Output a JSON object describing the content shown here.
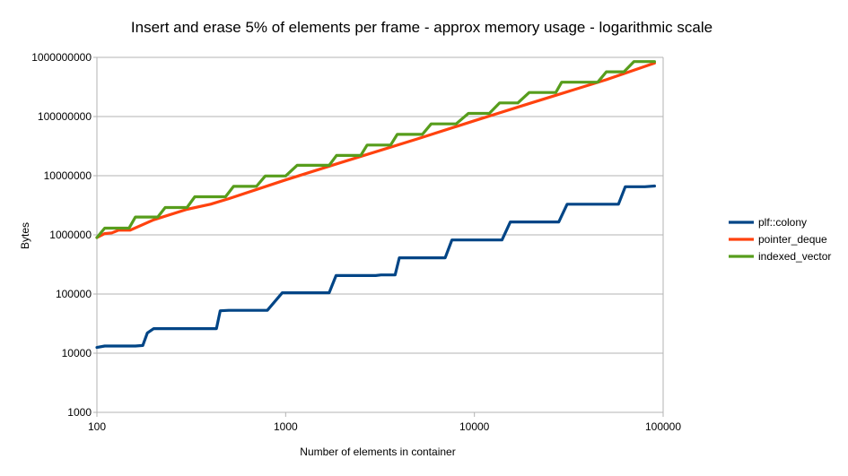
{
  "chart_data": {
    "type": "line",
    "title": "Insert and erase 5% of elements per frame - approx memory usage - logarithmic scale",
    "xlabel": "Number of elements in container",
    "ylabel": "Bytes",
    "x_scale": "log",
    "y_scale": "log",
    "xlim": [
      100,
      100000
    ],
    "ylim": [
      1000,
      1000000000
    ],
    "x_ticks": [
      "100",
      "1000",
      "10000",
      "100000"
    ],
    "y_ticks": [
      "1000",
      "10000",
      "100000",
      "1000000",
      "10000000",
      "100000000",
      "1000000000"
    ],
    "grid": "horizontal",
    "legend_position": "right",
    "series": [
      {
        "name": "plf::colony",
        "color": "#004586",
        "points": [
          [
            100,
            12500
          ],
          [
            110,
            13200
          ],
          [
            160,
            13200
          ],
          [
            175,
            13500
          ],
          [
            185,
            22000
          ],
          [
            200,
            26000
          ],
          [
            430,
            26000
          ],
          [
            450,
            52000
          ],
          [
            500,
            53000
          ],
          [
            800,
            53000
          ],
          [
            960,
            105000
          ],
          [
            1700,
            105000
          ],
          [
            1850,
            205000
          ],
          [
            3000,
            205000
          ],
          [
            3200,
            210000
          ],
          [
            3800,
            210000
          ],
          [
            4000,
            410000
          ],
          [
            7000,
            410000
          ],
          [
            7600,
            820000
          ],
          [
            14000,
            820000
          ],
          [
            15500,
            1650000
          ],
          [
            28000,
            1650000
          ],
          [
            31000,
            3300000
          ],
          [
            58000,
            3300000
          ],
          [
            63000,
            6500000
          ],
          [
            80000,
            6500000
          ],
          [
            90000,
            6700000
          ]
        ]
      },
      {
        "name": "pointer_deque",
        "color": "#ff420e",
        "points": [
          [
            100,
            900000
          ],
          [
            110,
            1050000
          ],
          [
            120,
            1080000
          ],
          [
            130,
            1200000
          ],
          [
            150,
            1200000
          ],
          [
            200,
            1800000
          ],
          [
            300,
            2700000
          ],
          [
            400,
            3300000
          ],
          [
            500,
            4100000
          ],
          [
            1000,
            8500000
          ],
          [
            2000,
            17000000
          ],
          [
            5000,
            42000000
          ],
          [
            10000,
            85000000
          ],
          [
            20000,
            170000000
          ],
          [
            50000,
            420000000
          ],
          [
            90000,
            800000000
          ]
        ]
      },
      {
        "name": "indexed_vector",
        "color": "#579d1c",
        "points": [
          [
            100,
            900000
          ],
          [
            110,
            1300000
          ],
          [
            148,
            1300000
          ],
          [
            160,
            2000000
          ],
          [
            210,
            2000000
          ],
          [
            230,
            2900000
          ],
          [
            300,
            2900000
          ],
          [
            330,
            4400000
          ],
          [
            480,
            4400000
          ],
          [
            530,
            6600000
          ],
          [
            700,
            6600000
          ],
          [
            780,
            9900000
          ],
          [
            1000,
            9900000
          ],
          [
            1150,
            15000000
          ],
          [
            1700,
            15000000
          ],
          [
            1860,
            22000000
          ],
          [
            2500,
            22000000
          ],
          [
            2700,
            33000000
          ],
          [
            3600,
            33000000
          ],
          [
            3900,
            50000000
          ],
          [
            5300,
            50000000
          ],
          [
            5900,
            75000000
          ],
          [
            8000,
            75000000
          ],
          [
            9300,
            113000000
          ],
          [
            12000,
            113000000
          ],
          [
            13600,
            170000000
          ],
          [
            17000,
            170000000
          ],
          [
            19500,
            255000000
          ],
          [
            27000,
            255000000
          ],
          [
            29000,
            380000000
          ],
          [
            45000,
            380000000
          ],
          [
            50000,
            570000000
          ],
          [
            62000,
            570000000
          ],
          [
            70000,
            850000000
          ],
          [
            90000,
            850000000
          ]
        ]
      }
    ]
  }
}
